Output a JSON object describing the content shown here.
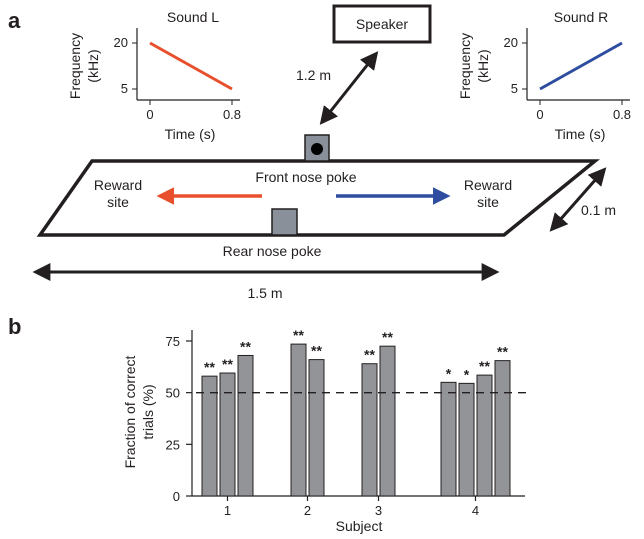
{
  "figure": {
    "panel_a": {
      "label": "a",
      "speaker": "Speaker",
      "speaker_distance": "1.2 m",
      "front_poke": "Front nose poke",
      "rear_poke": "Rear nose poke",
      "reward_left": [
        "Reward",
        "site"
      ],
      "reward_right": [
        "Reward",
        "site"
      ],
      "width_label": "1.5 m",
      "depth_label": "0.1 m",
      "colors": {
        "left": "#e8502d",
        "right": "#2e4da0",
        "poke": "#8a9099"
      }
    },
    "panel_b": {
      "label": "b"
    }
  },
  "chart_data": [
    {
      "type": "line",
      "title": "Sound L",
      "xlabel": "Time (s)",
      "ylabel": [
        "Frequency",
        "(kHz)"
      ],
      "x_ticks": [
        "0",
        "0.8"
      ],
      "y_ticks": [
        "5",
        "20"
      ],
      "xlim": [
        0,
        0.8
      ],
      "ylim": [
        5,
        20
      ],
      "color": "#e8502d",
      "x": [
        0,
        0.8
      ],
      "y": [
        20,
        5
      ]
    },
    {
      "type": "line",
      "title": "Sound R",
      "xlabel": "Time (s)",
      "ylabel": [
        "Frequency",
        "(kHz)"
      ],
      "x_ticks": [
        "0",
        "0.8"
      ],
      "y_ticks": [
        "5",
        "20"
      ],
      "xlim": [
        0,
        0.8
      ],
      "ylim": [
        5,
        20
      ],
      "color": "#2e4da0",
      "x": [
        0,
        0.8
      ],
      "y": [
        5,
        20
      ]
    },
    {
      "type": "bar",
      "xlabel": "Subject",
      "ylabel": [
        "Fraction of correct",
        "trials (%)"
      ],
      "ylim": [
        0,
        75
      ],
      "y_ticks": [
        "0",
        "25",
        "50",
        "75"
      ],
      "reference_line": 50,
      "bar_color": "#929497",
      "categories": [
        "1",
        "2",
        "3",
        "4"
      ],
      "groups": [
        {
          "subject": "1",
          "values": [
            58,
            59.5,
            68
          ],
          "significance": [
            "**",
            "**",
            "**"
          ]
        },
        {
          "subject": "2",
          "values": [
            73.5,
            66
          ],
          "significance": [
            "**",
            "**"
          ]
        },
        {
          "subject": "3",
          "values": [
            64,
            72.5
          ],
          "significance": [
            "**",
            "**"
          ]
        },
        {
          "subject": "4",
          "values": [
            55,
            54.5,
            58.5,
            65.5
          ],
          "significance": [
            "*",
            "*",
            "**",
            "**"
          ]
        }
      ]
    }
  ]
}
